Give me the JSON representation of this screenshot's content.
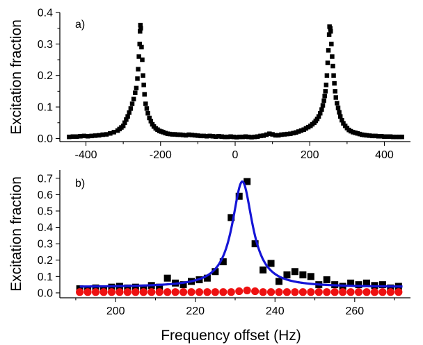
{
  "colors": {
    "data": "#000000",
    "fit": "#1515d6",
    "reference": "#ee1111"
  },
  "chart_data": [
    {
      "panel_label": "a)",
      "type": "scatter",
      "xlim": [
        -470,
        470
      ],
      "ylim": [
        -0.01,
        0.4
      ],
      "xticks": [
        -400,
        -200,
        0,
        200,
        400
      ],
      "xticks_minor": [
        -300,
        -100,
        100,
        300
      ],
      "yticks": [
        0.0,
        0.1,
        0.2,
        0.3,
        0.4
      ],
      "yticks_minor": [
        0.05,
        0.15,
        0.25,
        0.35
      ],
      "xlabel": "",
      "ylabel": "Excitation fraction",
      "marker": "square",
      "series": [
        {
          "points": [
            [
              -445,
              0.005
            ],
            [
              -435,
              0.006
            ],
            [
              -425,
              0.006
            ],
            [
              -415,
              0.007
            ],
            [
              -405,
              0.008
            ],
            [
              -395,
              0.007
            ],
            [
              -385,
              0.008
            ],
            [
              -375,
              0.009
            ],
            [
              -365,
              0.01
            ],
            [
              -355,
              0.012
            ],
            [
              -345,
              0.013
            ],
            [
              -335,
              0.016
            ],
            [
              -325,
              0.02
            ],
            [
              -315,
              0.025
            ],
            [
              -310,
              0.03
            ],
            [
              -305,
              0.035
            ],
            [
              -300,
              0.04
            ],
            [
              -296,
              0.05
            ],
            [
              -292,
              0.06
            ],
            [
              -288,
              0.07
            ],
            [
              -284,
              0.082
            ],
            [
              -280,
              0.095
            ],
            [
              -276,
              0.11
            ],
            [
              -272,
              0.125
            ],
            [
              -268,
              0.145
            ],
            [
              -265,
              0.16
            ],
            [
              -262,
              0.19
            ],
            [
              -260,
              0.22
            ],
            [
              -258,
              0.26
            ],
            [
              -256,
              0.3
            ],
            [
              -255,
              0.34
            ],
            [
              -254,
              0.36
            ],
            [
              -253,
              0.35
            ],
            [
              -251,
              0.29
            ],
            [
              -249,
              0.25
            ],
            [
              -247,
              0.2
            ],
            [
              -245,
              0.17
            ],
            [
              -243,
              0.14
            ],
            [
              -240,
              0.11
            ],
            [
              -237,
              0.095
            ],
            [
              -234,
              0.08
            ],
            [
              -230,
              0.065
            ],
            [
              -226,
              0.055
            ],
            [
              -222,
              0.045
            ],
            [
              -218,
              0.038
            ],
            [
              -213,
              0.032
            ],
            [
              -208,
              0.028
            ],
            [
              -203,
              0.024
            ],
            [
              -198,
              0.022
            ],
            [
              -193,
              0.02
            ],
            [
              -187,
              0.017
            ],
            [
              -181,
              0.015
            ],
            [
              -175,
              0.014
            ],
            [
              -168,
              0.013
            ],
            [
              -161,
              0.013
            ],
            [
              -154,
              0.012
            ],
            [
              -147,
              0.012
            ],
            [
              -140,
              0.011
            ],
            [
              -132,
              0.01
            ],
            [
              -124,
              0.012
            ],
            [
              -116,
              0.011
            ],
            [
              -108,
              0.01
            ],
            [
              -100,
              0.009
            ],
            [
              -92,
              0.008
            ],
            [
              -84,
              0.008
            ],
            [
              -76,
              0.007
            ],
            [
              -68,
              0.008
            ],
            [
              -60,
              0.007
            ],
            [
              -52,
              0.006
            ],
            [
              -44,
              0.007
            ],
            [
              -36,
              0.006
            ],
            [
              -28,
              0.005
            ],
            [
              -20,
              0.005
            ],
            [
              -12,
              0.006
            ],
            [
              -4,
              0.005
            ],
            [
              4,
              0.004
            ],
            [
              12,
              0.005
            ],
            [
              20,
              0.005
            ],
            [
              28,
              0.006
            ],
            [
              36,
              0.005
            ],
            [
              44,
              0.004
            ],
            [
              52,
              0.005
            ],
            [
              60,
              0.006
            ],
            [
              68,
              0.008
            ],
            [
              76,
              0.009
            ],
            [
              84,
              0.012
            ],
            [
              92,
              0.015
            ],
            [
              100,
              0.013
            ],
            [
              108,
              0.01
            ],
            [
              116,
              0.01
            ],
            [
              124,
              0.012
            ],
            [
              132,
              0.013
            ],
            [
              140,
              0.014
            ],
            [
              148,
              0.015
            ],
            [
              156,
              0.017
            ],
            [
              163,
              0.019
            ],
            [
              170,
              0.022
            ],
            [
              177,
              0.025
            ],
            [
              184,
              0.028
            ],
            [
              190,
              0.032
            ],
            [
              196,
              0.036
            ],
            [
              202,
              0.04
            ],
            [
              207,
              0.045
            ],
            [
              212,
              0.05
            ],
            [
              216,
              0.056
            ],
            [
              220,
              0.062
            ],
            [
              224,
              0.07
            ],
            [
              228,
              0.08
            ],
            [
              232,
              0.092
            ],
            [
              235,
              0.105
            ],
            [
              238,
              0.12
            ],
            [
              240,
              0.135
            ],
            [
              242,
              0.15
            ],
            [
              244,
              0.17
            ],
            [
              246,
              0.2
            ],
            [
              248,
              0.24
            ],
            [
              250,
              0.28
            ],
            [
              252,
              0.33
            ],
            [
              253,
              0.355
            ],
            [
              255,
              0.35
            ],
            [
              256,
              0.34
            ],
            [
              258,
              0.3
            ],
            [
              260,
              0.26
            ],
            [
              262,
              0.23
            ],
            [
              264,
              0.2
            ],
            [
              266,
              0.175
            ],
            [
              268,
              0.15
            ],
            [
              270,
              0.13
            ],
            [
              273,
              0.112
            ],
            [
              276,
              0.097
            ],
            [
              279,
              0.083
            ],
            [
              282,
              0.07
            ],
            [
              286,
              0.058
            ],
            [
              290,
              0.048
            ],
            [
              295,
              0.04
            ],
            [
              300,
              0.033
            ],
            [
              305,
              0.027
            ],
            [
              310,
              0.023
            ],
            [
              316,
              0.02
            ],
            [
              322,
              0.018
            ],
            [
              328,
              0.016
            ],
            [
              334,
              0.014
            ],
            [
              340,
              0.012
            ],
            [
              346,
              0.011
            ],
            [
              352,
              0.01
            ],
            [
              360,
              0.009
            ],
            [
              368,
              0.008
            ],
            [
              376,
              0.008
            ],
            [
              384,
              0.007
            ],
            [
              392,
              0.007
            ],
            [
              400,
              0.006
            ],
            [
              408,
              0.006
            ],
            [
              416,
              0.006
            ],
            [
              424,
              0.005
            ],
            [
              432,
              0.005
            ],
            [
              440,
              0.005
            ],
            [
              447,
              0.005
            ]
          ]
        }
      ]
    },
    {
      "panel_label": "b)",
      "type": "scatter",
      "xlim": [
        186,
        274
      ],
      "ylim": [
        -0.03,
        0.75
      ],
      "xticks": [
        200,
        220,
        240,
        260
      ],
      "xticks_minor": [
        190,
        210,
        230,
        250,
        270
      ],
      "yticks": [
        0.0,
        0.1,
        0.2,
        0.3,
        0.4,
        0.5,
        0.6,
        0.7
      ],
      "xlabel": "Frequency offset (Hz)",
      "ylabel": "Excitation fraction",
      "series": [
        {
          "marker": "square",
          "points": [
            [
              191,
              0.025
            ],
            [
              193,
              0.02
            ],
            [
              195,
              0.03
            ],
            [
              197,
              0.025
            ],
            [
              199,
              0.035
            ],
            [
              201,
              0.04
            ],
            [
              203,
              0.03
            ],
            [
              205,
              0.035
            ],
            [
              207,
              0.03
            ],
            [
              209,
              0.045
            ],
            [
              211,
              0.035
            ],
            [
              213,
              0.09
            ],
            [
              215,
              0.06
            ],
            [
              217,
              0.05
            ],
            [
              219,
              0.07
            ],
            [
              221,
              0.08
            ],
            [
              223,
              0.09
            ],
            [
              225,
              0.13
            ],
            [
              227,
              0.19
            ],
            [
              229,
              0.46
            ],
            [
              231,
              0.59
            ],
            [
              233,
              0.68
            ],
            [
              235,
              0.3
            ],
            [
              237,
              0.14
            ],
            [
              239,
              0.18
            ],
            [
              241,
              0.07
            ],
            [
              243,
              0.11
            ],
            [
              245,
              0.13
            ],
            [
              247,
              0.11
            ],
            [
              249,
              0.1
            ],
            [
              251,
              0.05
            ],
            [
              253,
              0.08
            ],
            [
              255,
              0.05
            ],
            [
              257,
              0.04
            ],
            [
              259,
              0.06
            ],
            [
              261,
              0.05
            ],
            [
              263,
              0.06
            ],
            [
              265,
              0.045
            ],
            [
              267,
              0.05
            ],
            [
              269,
              0.03
            ],
            [
              271,
              0.04
            ]
          ]
        },
        {
          "marker": "circle",
          "points": [
            [
              191,
              0.005
            ],
            [
              193,
              0.005
            ],
            [
              195,
              0.005
            ],
            [
              197,
              0.005
            ],
            [
              199,
              0.005
            ],
            [
              201,
              0.005
            ],
            [
              203,
              0.005
            ],
            [
              205,
              0.005
            ],
            [
              207,
              0.005
            ],
            [
              209,
              0.005
            ],
            [
              211,
              0.005
            ],
            [
              213,
              0.005
            ],
            [
              215,
              0.005
            ],
            [
              217,
              0.005
            ],
            [
              219,
              0.005
            ],
            [
              221,
              0.005
            ],
            [
              223,
              0.005
            ],
            [
              225,
              0.005
            ],
            [
              227,
              0.005
            ],
            [
              229,
              0.005
            ],
            [
              231,
              0.01
            ],
            [
              233,
              0.015
            ],
            [
              235,
              0.01
            ],
            [
              237,
              0.005
            ],
            [
              239,
              0.005
            ],
            [
              241,
              0.005
            ],
            [
              243,
              0.005
            ],
            [
              245,
              0.005
            ],
            [
              247,
              0.005
            ],
            [
              249,
              0.005
            ],
            [
              251,
              0.005
            ],
            [
              253,
              0.005
            ],
            [
              255,
              0.005
            ],
            [
              257,
              0.005
            ],
            [
              259,
              0.005
            ],
            [
              261,
              0.005
            ],
            [
              263,
              0.005
            ],
            [
              265,
              0.005
            ],
            [
              267,
              0.005
            ],
            [
              269,
              0.005
            ],
            [
              271,
              0.005
            ]
          ]
        },
        {
          "type": "line",
          "model": "lorentzian",
          "center": 231.8,
          "amplitude": 0.645,
          "fwhm": 6.2,
          "offset": 0.035,
          "x_range": [
            191,
            272
          ]
        }
      ]
    }
  ]
}
